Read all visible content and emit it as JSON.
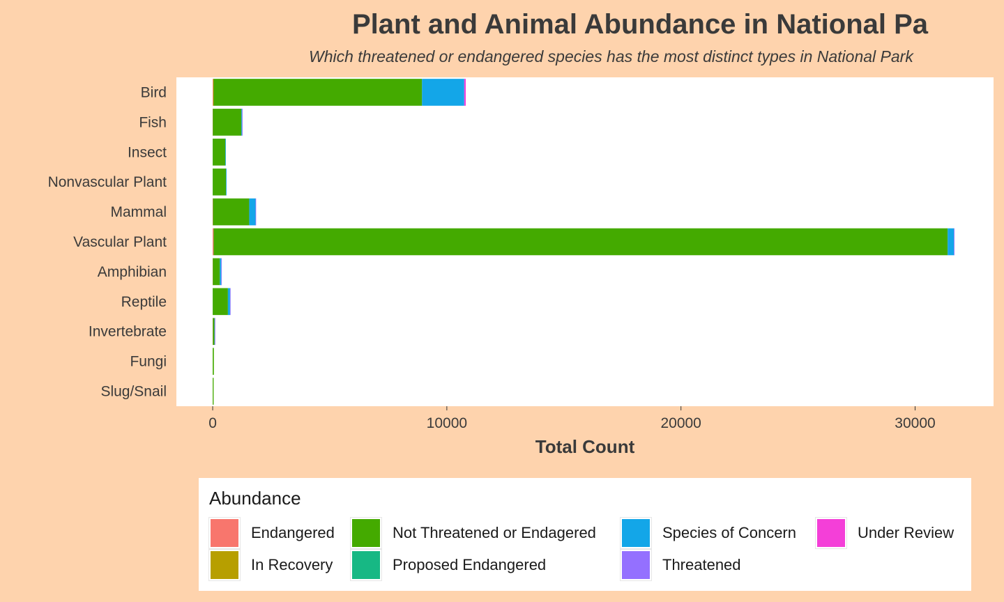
{
  "chart_data": {
    "type": "bar",
    "orientation": "horizontal",
    "stacked": true,
    "title": "Plant and Animal Abundance in National Pa",
    "subtitle": "Which threatened or endangered species has the most distinct types in National Park",
    "xlabel": "Total Count",
    "ylabel": "",
    "xlim": [
      -1550,
      33350
    ],
    "xticks": [
      0,
      10000,
      20000,
      30000
    ],
    "grid": false,
    "legend_position": "bottom",
    "legend_title": "Abundance",
    "categories": [
      "Bird",
      "Fish",
      "Insect",
      "Nonvascular Plant",
      "Mammal",
      "Vascular Plant",
      "Amphibian",
      "Reptile",
      "Invertebrate",
      "Fungi",
      "Slug/Snail"
    ],
    "series": [
      {
        "name": "Endangered",
        "color": "#F8766D",
        "values": [
          20,
          5,
          0,
          0,
          10,
          40,
          5,
          0,
          5,
          0,
          0
        ]
      },
      {
        "name": "In Recovery",
        "color": "#B79F00",
        "values": [
          20,
          0,
          0,
          0,
          0,
          0,
          0,
          0,
          0,
          0,
          0
        ]
      },
      {
        "name": "Not Threatened or Endagered",
        "color": "#44AA00",
        "values": [
          8900,
          1220,
          540,
          570,
          1550,
          31350,
          300,
          650,
          70,
          50,
          40
        ]
      },
      {
        "name": "Proposed Endangered",
        "color": "#17B884",
        "values": [
          0,
          0,
          0,
          0,
          0,
          0,
          0,
          0,
          0,
          0,
          0
        ]
      },
      {
        "name": "Species of Concern",
        "color": "#13A6E8",
        "values": [
          1800,
          30,
          10,
          10,
          270,
          270,
          60,
          90,
          10,
          0,
          0
        ]
      },
      {
        "name": "Threatened",
        "color": "#9470FF",
        "values": [
          10,
          10,
          0,
          0,
          5,
          5,
          5,
          5,
          5,
          0,
          0
        ]
      },
      {
        "name": "Under Review",
        "color": "#F43FD8",
        "values": [
          60,
          0,
          0,
          0,
          0,
          0,
          0,
          0,
          0,
          0,
          0
        ]
      }
    ]
  },
  "legend": {
    "title": "Abundance",
    "items": [
      {
        "label": "Endangered",
        "color": "#F8766D"
      },
      {
        "label": "Not Threatened or Endagered",
        "color": "#44AA00"
      },
      {
        "label": "Species of Concern",
        "color": "#13A6E8"
      },
      {
        "label": "Under Review",
        "color": "#F43FD8"
      },
      {
        "label": "In Recovery",
        "color": "#B79F00"
      },
      {
        "label": "Proposed Endangered",
        "color": "#17B884"
      },
      {
        "label": "Threatened",
        "color": "#9470FF"
      }
    ]
  }
}
